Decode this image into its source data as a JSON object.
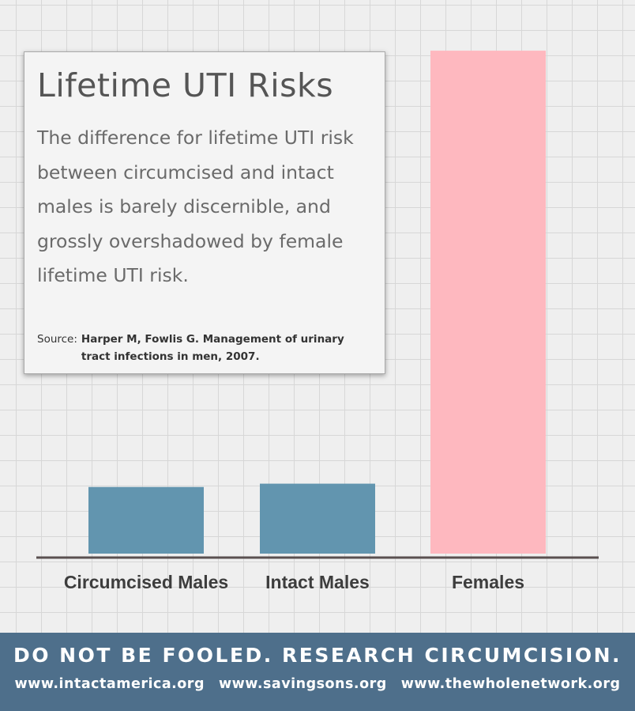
{
  "chart_data": {
    "type": "bar",
    "categories": [
      "Circumcised Males",
      "Intact Males",
      "Females"
    ],
    "values": [
      1,
      1.05,
      7.55
    ],
    "colors": [
      "#6295af",
      "#6295af",
      "#feb8bf"
    ],
    "title": "Lifetime UTI Risks",
    "xlabel": "",
    "ylabel": "",
    "ylim": [
      0,
      7.8
    ],
    "grid": true
  },
  "info": {
    "title": "Lifetime UTI Risks",
    "description": "The difference for lifetime UTI risk between circumcised and intact males is barely discernible, and grossly overshadowed by female lifetime UTI risk.",
    "source_label": "Source:",
    "source_text": "Harper M, Fowlis G. Management of urinary tract infections in men, 2007."
  },
  "footer": {
    "slogan": "DO NOT BE FOOLED. RESEARCH CIRCUMCISION.",
    "links": [
      "www.intactamerica.org",
      "www.savingsons.org",
      "www.thewholenetwork.org"
    ]
  },
  "colors": {
    "footer_bg": "#4e6f8b",
    "axis": "#5a5050"
  }
}
